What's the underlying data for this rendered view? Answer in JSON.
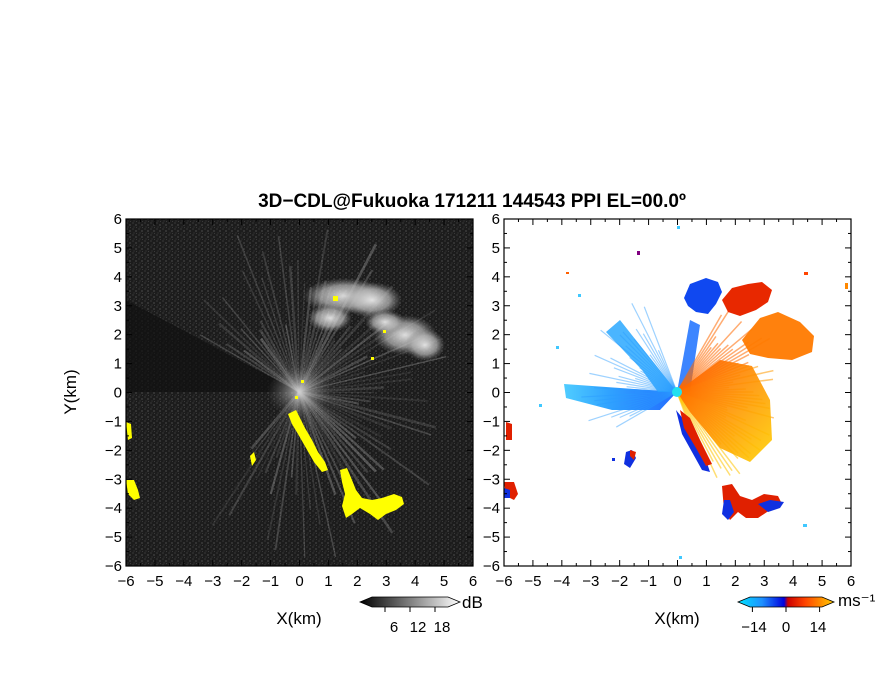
{
  "figure": {
    "title": "3D−CDL@Fukuoka 171211 144543 PPI EL=00.0º"
  },
  "chart_data": [
    {
      "type": "heatmap",
      "panel": "left",
      "title": "",
      "xlabel": "X(km)",
      "ylabel": "Y(km)",
      "xlim": [
        -6,
        6
      ],
      "ylim": [
        -6,
        6
      ],
      "xticks": [
        "−6",
        "−5",
        "−4",
        "−3",
        "−2",
        "−1",
        "0",
        "1",
        "2",
        "3",
        "4",
        "5",
        "6"
      ],
      "yticks": [
        "−6",
        "−5",
        "−4",
        "−3",
        "−2",
        "−1",
        "0",
        "1",
        "2",
        "3",
        "4",
        "5",
        "6"
      ],
      "background_color": "#202020",
      "highlight_color": "#ffff00",
      "colorbar": {
        "unit": "dB",
        "tick_labels": [
          "6",
          "12",
          "18"
        ],
        "tick_values": [
          6,
          12,
          18
        ],
        "range": [
          0,
          24
        ]
      },
      "features": [
        {
          "kind": "bright_echo",
          "label": "cloud echoes north-east",
          "x_range": [
            1.0,
            5.0
          ],
          "y_range": [
            1.5,
            4.0
          ]
        },
        {
          "kind": "flagged_yellow",
          "label": "ground clutter south-east",
          "x_range": [
            -0.3,
            4.2
          ],
          "y_range": [
            -4.3,
            -0.6
          ]
        },
        {
          "kind": "flagged_yellow",
          "label": "clutter west edge",
          "x_range": [
            -6.0,
            -5.6
          ],
          "y_range": [
            -3.7,
            -1.0
          ]
        }
      ]
    },
    {
      "type": "heatmap",
      "panel": "right",
      "title": "",
      "xlabel": "X(km)",
      "ylabel": "",
      "xlim": [
        -6,
        6
      ],
      "ylim": [
        -6,
        6
      ],
      "xticks": [
        "−6",
        "−5",
        "−4",
        "−3",
        "−2",
        "−1",
        "0",
        "1",
        "2",
        "3",
        "4",
        "5",
        "6"
      ],
      "yticks": [
        "−6",
        "−5",
        "−4",
        "−3",
        "−2",
        "−1",
        "0",
        "1",
        "2",
        "3",
        "4",
        "5",
        "6"
      ],
      "background_color": "#ffffff",
      "colorbar": {
        "unit": "ms⁻¹",
        "tick_labels": [
          "−14",
          "0",
          "14"
        ],
        "tick_values": [
          -14,
          0,
          14
        ],
        "range": [
          -20,
          20
        ],
        "colors": [
          "#00e5ff",
          "#1e90ff",
          "#0000dd",
          "#cc0000",
          "#ff4400",
          "#ff8800",
          "#ffcc00"
        ]
      },
      "features": [
        {
          "kind": "approaching",
          "label": "blue radial west",
          "x_range": [
            -3.5,
            0
          ],
          "y_range": [
            -0.8,
            0.3
          ]
        },
        {
          "kind": "approaching",
          "label": "blue radial north-west",
          "x_range": [
            -2.2,
            0
          ],
          "y_range": [
            0,
            3.0
          ]
        },
        {
          "kind": "approaching",
          "label": "blue cloud north",
          "x_range": [
            0.3,
            1.6
          ],
          "y_range": [
            2.8,
            4.0
          ]
        },
        {
          "kind": "receding",
          "label": "red cloud north-east",
          "x_range": [
            1.6,
            3.4
          ],
          "y_range": [
            2.7,
            3.8
          ]
        },
        {
          "kind": "receding",
          "label": "orange east",
          "x_range": [
            1.8,
            4.5
          ],
          "y_range": [
            1.2,
            2.8
          ]
        },
        {
          "kind": "receding",
          "label": "orange/yellow south-east fan",
          "x_range": [
            0,
            3.0
          ],
          "y_range": [
            -2.3,
            1.2
          ]
        },
        {
          "kind": "dipole",
          "label": "red/blue clutter south-east",
          "x_range": [
            1.5,
            3.7
          ],
          "y_range": [
            -4.4,
            -3.1
          ]
        }
      ]
    }
  ]
}
